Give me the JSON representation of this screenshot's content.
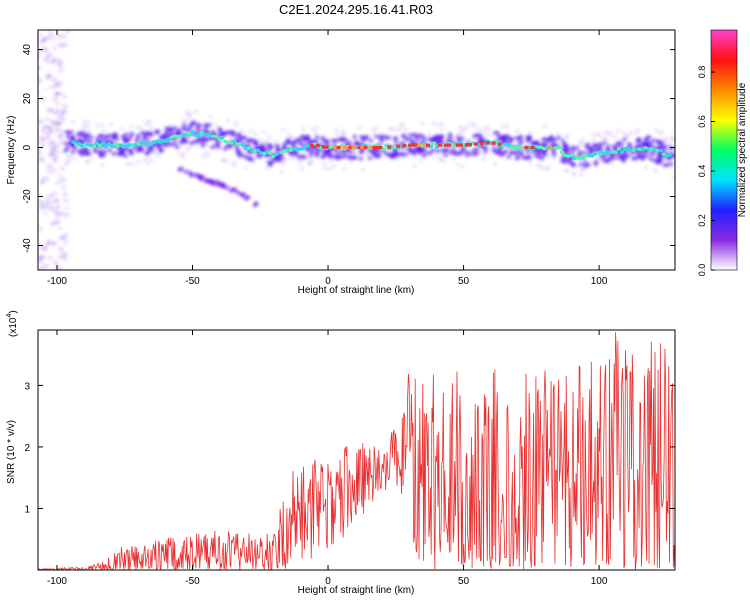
{
  "title": "C2E1.2024.295.16.41.R03",
  "colors": {
    "axis": "#000000",
    "snr_line": "#e83030",
    "core": "#e8383a",
    "ridge": "#5ef0b0",
    "halo": "#5a18f0",
    "haze": "#c8a8f4"
  },
  "chart_data": [
    {
      "type": "heatmap",
      "name": "spectrogram",
      "xlabel": "Height of straight line (km)",
      "ylabel": "Frequency (Hz)",
      "xlim": [
        -107,
        128
      ],
      "ylim": [
        -50,
        48
      ],
      "x_ticks": [
        -100,
        -50,
        0,
        50,
        100
      ],
      "y_ticks": [
        -40,
        -20,
        0,
        20,
        40
      ],
      "grid": false,
      "colorbar": {
        "label": "Normalized spectral amplitude",
        "range": [
          0,
          0.97
        ],
        "ticks": [
          "0.0",
          "0.2",
          "0.4",
          "0.6",
          "0.8"
        ],
        "colormap": [
          "#ffffff",
          "#8a2be2",
          "#2020ff",
          "#00e5ff",
          "#00ff60",
          "#ffff00",
          "#ff8800",
          "#ff1010",
          "#ff40d0"
        ]
      },
      "ridge_track": {
        "x": [
          -95,
          -85,
          -75,
          -65,
          -57,
          -50,
          -45,
          -40,
          -35,
          -30,
          -25,
          -20,
          -15,
          -10,
          -5,
          0,
          10,
          20,
          30,
          40,
          50,
          60,
          70,
          80,
          85,
          88,
          92,
          100,
          110,
          118,
          125,
          128
        ],
        "frequency": [
          2,
          1,
          1,
          2,
          4,
          6,
          5,
          4,
          2,
          0,
          -2,
          -3,
          -1,
          0,
          1,
          0,
          0,
          0,
          1,
          1,
          1,
          2,
          0,
          0,
          0,
          -3,
          -4,
          -2,
          -1,
          0,
          -3,
          -5
        ]
      },
      "side_branch": {
        "x": [
          -55,
          -50,
          -45,
          -40,
          -36,
          -32,
          -29,
          -26
        ],
        "frequency": [
          -9,
          -11,
          -13,
          -15,
          -17,
          -19,
          -21,
          -24
        ]
      },
      "noise_band_x": [
        -107,
        -96
      ]
    },
    {
      "type": "line",
      "name": "snr",
      "xlabel": "Height of straight line (km)",
      "ylabel": "SNR (10 * v/v)",
      "y_multiplier": "(x10",
      "y_multiplier_exp": "4",
      "xlim": [
        -107,
        128
      ],
      "ylim": [
        0,
        3.9
      ],
      "x_ticks": [
        -100,
        -50,
        0,
        50,
        100
      ],
      "y_ticks": [
        1,
        2,
        3
      ],
      "grid": false,
      "envelope": {
        "x": [
          -107,
          -90,
          -82,
          -78,
          -70,
          -60,
          -50,
          -40,
          -30,
          -20,
          -15,
          -10,
          0,
          10,
          20,
          25,
          30,
          35,
          45,
          55,
          65,
          75,
          85,
          95,
          105,
          115,
          125,
          128
        ],
        "base": [
          0.01,
          0.02,
          0.05,
          0.12,
          0.15,
          0.2,
          0.25,
          0.28,
          0.25,
          0.28,
          0.75,
          0.9,
          1.1,
          1.4,
          1.7,
          1.85,
          1.9,
          1.6,
          1.45,
          1.3,
          1.25,
          1.3,
          1.5,
          1.6,
          1.6,
          1.6,
          1.5,
          1.5
        ],
        "spread": [
          0.01,
          0.03,
          0.1,
          0.25,
          0.3,
          0.35,
          0.4,
          0.38,
          0.35,
          0.3,
          0.8,
          0.8,
          0.8,
          0.7,
          0.5,
          0.45,
          1.4,
          1.6,
          1.8,
          2.0,
          2.0,
          2.0,
          1.8,
          2.2,
          2.3,
          2.3,
          2.2,
          2.0
        ]
      }
    }
  ]
}
